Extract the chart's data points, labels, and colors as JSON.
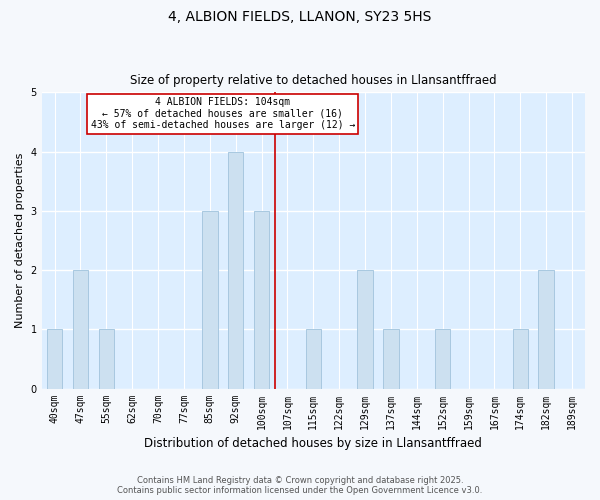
{
  "title_line1": "4, ALBION FIELDS, LLANON, SY23 5HS",
  "title_line2": "Size of property relative to detached houses in Llansantffraed",
  "xlabel": "Distribution of detached houses by size in Llansantffraed",
  "ylabel": "Number of detached properties",
  "categories": [
    "40sqm",
    "47sqm",
    "55sqm",
    "62sqm",
    "70sqm",
    "77sqm",
    "85sqm",
    "92sqm",
    "100sqm",
    "107sqm",
    "115sqm",
    "122sqm",
    "129sqm",
    "137sqm",
    "144sqm",
    "152sqm",
    "159sqm",
    "167sqm",
    "174sqm",
    "182sqm",
    "189sqm"
  ],
  "values": [
    1,
    2,
    1,
    0,
    0,
    0,
    3,
    4,
    3,
    0,
    1,
    0,
    2,
    1,
    0,
    1,
    0,
    0,
    1,
    2,
    0
  ],
  "bar_color": "#cce0f0",
  "bar_edge_color": "#a8c8e0",
  "subject_line_color": "#cc0000",
  "annotation_box_color": "#ffffff",
  "annotation_box_edge": "#cc0000",
  "ylim": [
    0,
    5
  ],
  "yticks": [
    0,
    1,
    2,
    3,
    4,
    5
  ],
  "plot_bg_color": "#ddeeff",
  "fig_bg_color": "#f5f8fc",
  "grid_color": "#ffffff",
  "footer_line1": "Contains HM Land Registry data © Crown copyright and database right 2025.",
  "footer_line2": "Contains public sector information licensed under the Open Government Licence v3.0.",
  "title_fontsize": 10,
  "subtitle_fontsize": 8.5,
  "xlabel_fontsize": 8.5,
  "ylabel_fontsize": 8,
  "tick_fontsize": 7,
  "annotation_fontsize": 7,
  "footer_fontsize": 6
}
